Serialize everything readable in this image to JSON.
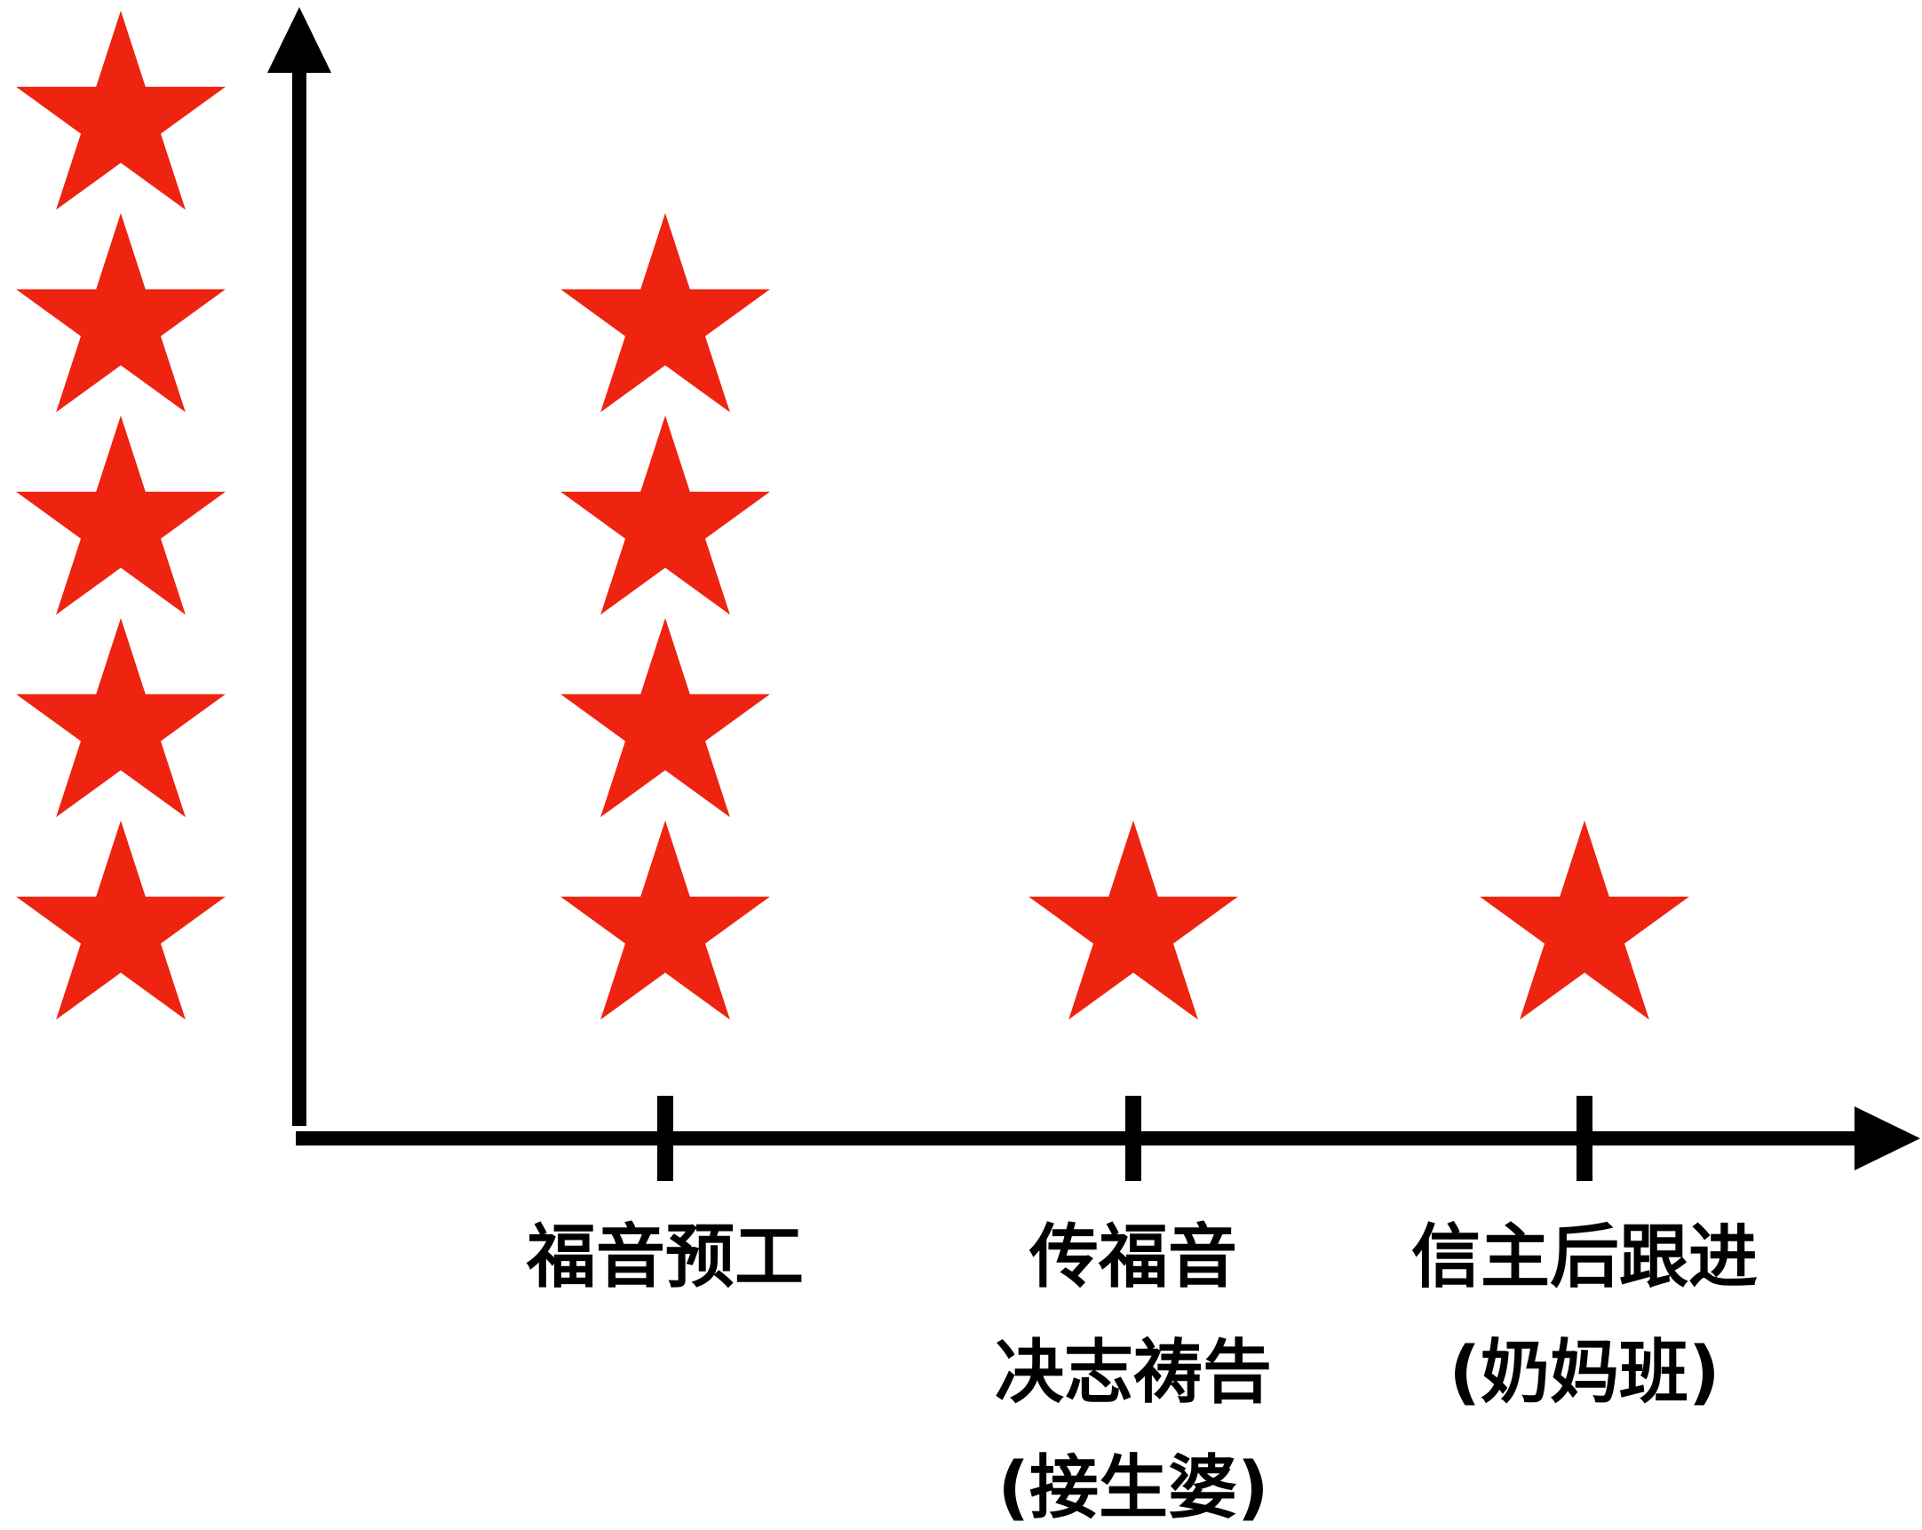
{
  "chart_data": {
    "type": "scatter",
    "marker": "star",
    "title": "",
    "xlabel": "",
    "ylabel": "",
    "colors": {
      "marker": "#ee2310",
      "axis": "#000000"
    },
    "y_scale_column": {
      "star_count": 5
    },
    "categories": [
      {
        "lines": [
          "福音预工"
        ],
        "value": 4
      },
      {
        "lines": [
          "传福音",
          "决志祷告",
          "(接生婆)"
        ],
        "value": 1
      },
      {
        "lines": [
          "信主后跟进",
          "(奶妈班)"
        ],
        "value": 1
      }
    ],
    "ylim": [
      0,
      5
    ],
    "grid": false,
    "legend": "none"
  }
}
